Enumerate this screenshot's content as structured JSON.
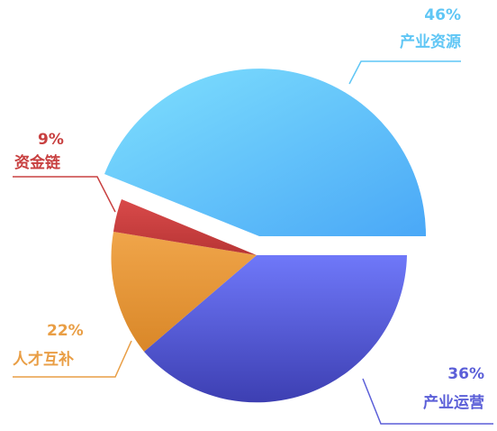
{
  "chart_data": {
    "type": "pie",
    "slices": [
      {
        "label": "产业资源",
        "percent_label": "46%",
        "value": 46,
        "color": "#62c8fb",
        "exploded": true
      },
      {
        "label": "产业运营",
        "percent_label": "36%",
        "value": 36,
        "color": "#5b62e6",
        "exploded": false
      },
      {
        "label": "人才互补",
        "percent_label": "22%",
        "value": 22,
        "color": "#ea9e45",
        "exploded": false
      },
      {
        "label": "资金链",
        "percent_label": "9%",
        "value": 9,
        "color": "#cc4040",
        "exploded": false
      }
    ],
    "legend": "callouts"
  }
}
